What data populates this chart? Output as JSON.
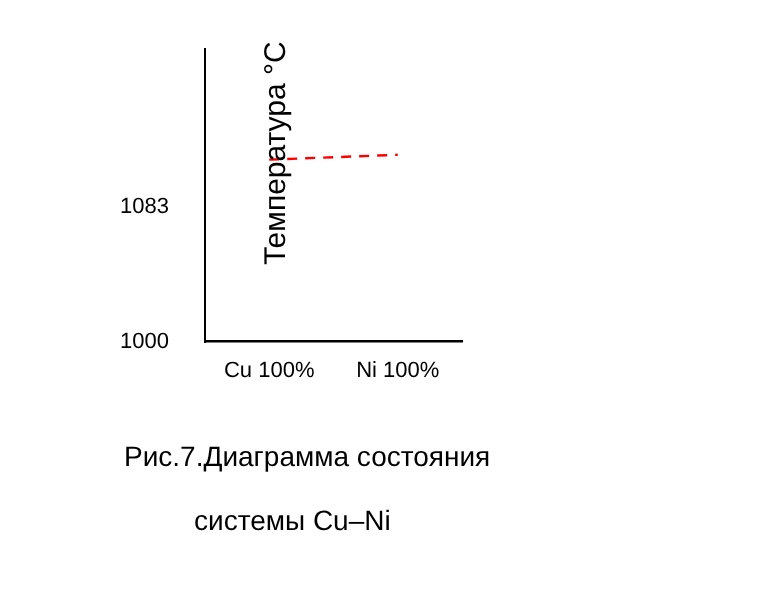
{
  "chart_data": {
    "type": "line",
    "ylabel": "Температура °C",
    "categories": [
      "Cu 100%",
      "Ni 100%"
    ],
    "ylim": [
      1000,
      1180
    ],
    "yticks": [
      1000,
      1083
    ],
    "series": [
      {
        "values": [
          1112,
          1115
        ],
        "color": "#ff0000"
      }
    ],
    "line_style": "dashed",
    "marker": "none",
    "grid": false,
    "legend": false,
    "annotations": [
      "Рис.7.Диаграмма состояния",
      "системы Cu–Ni"
    ]
  }
}
